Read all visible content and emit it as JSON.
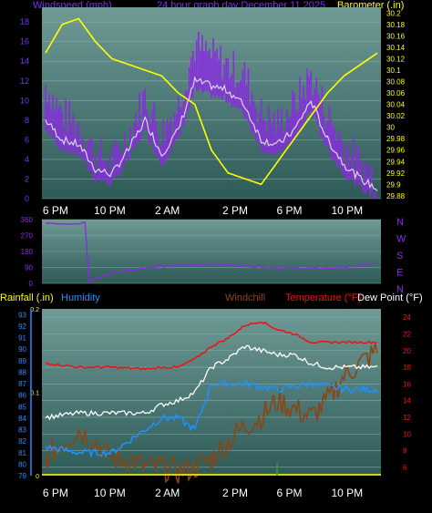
{
  "header": {
    "windspeed_label": "Windspeed (mph)",
    "period_label": "24 hour graph day  December 11 2025",
    "barometer_label": "Barometer (.in)",
    "rainfall_label": "Rainfall (.in)",
    "humidity_label": "Humidity",
    "windchill_label": "Windchill",
    "temperature_label": "Temperature (°F)",
    "dewpoint_label": "Dew Point (°F)"
  },
  "colors": {
    "windspeed": "#7b2ff7",
    "windgust": "#8a2be2",
    "windavg": "#d8d8e8",
    "barometer": "#ffff00",
    "direction": "#8a2be2",
    "rainfall": "#ffff00",
    "humidity": "#1e90ff",
    "windchill": "#8b4513",
    "temperature": "#ee1111",
    "dewpoint": "#ffffff",
    "plot_top": "#6f9a96",
    "plot_bottom": "#2e5a58"
  },
  "chart_data": [
    {
      "type": "line",
      "panel": "wind_barometer",
      "x_ticks": [
        "6 PM",
        "10 PM",
        "2 AM",
        "2 PM",
        "6 PM",
        "10 PM"
      ],
      "y_left_ticks": [
        "0",
        "2",
        "4",
        "6",
        "8",
        "10",
        "12",
        "14",
        "16",
        "18"
      ],
      "y_left_range": [
        0,
        19.5
      ],
      "y_right_ticks": [
        "29.88",
        "29.9",
        "29.92",
        "29.94",
        "29.96",
        "29.98",
        "30",
        "30.02",
        "30.04",
        "30.06",
        "30.08",
        "30.1",
        "30.12",
        "30.14",
        "30.16",
        "30.18",
        "30.2"
      ],
      "y_right_range": [
        29.875,
        30.21
      ],
      "series": [
        {
          "name": "Windspeed (mph)",
          "axis": "left",
          "x": [
            0,
            0.05,
            0.1,
            0.15,
            0.2,
            0.25,
            0.3,
            0.35,
            0.4,
            0.45,
            0.5,
            0.55,
            0.6,
            0.65,
            0.7,
            0.75,
            0.8,
            0.85,
            0.9,
            0.95,
            1
          ],
          "values": [
            11,
            8,
            7,
            4,
            3,
            6,
            10,
            6,
            9,
            15,
            14,
            13,
            12,
            8,
            7,
            9,
            12,
            8,
            5,
            3,
            1.5
          ]
        },
        {
          "name": "Windspeed avg",
          "axis": "left",
          "x": [
            0,
            0.05,
            0.1,
            0.15,
            0.2,
            0.25,
            0.3,
            0.35,
            0.4,
            0.45,
            0.5,
            0.55,
            0.6,
            0.65,
            0.7,
            0.75,
            0.8,
            0.85,
            0.9,
            0.95,
            1
          ],
          "values": [
            8,
            6,
            5.5,
            3,
            2.5,
            5,
            8,
            4.5,
            7,
            12,
            11.5,
            11,
            9.5,
            6,
            5.5,
            7,
            10,
            6,
            3.5,
            2,
            1
          ]
        },
        {
          "name": "Barometer (.in)",
          "axis": "right",
          "x": [
            0,
            0.05,
            0.1,
            0.15,
            0.2,
            0.25,
            0.3,
            0.35,
            0.4,
            0.45,
            0.5,
            0.55,
            0.6,
            0.65,
            0.7,
            0.75,
            0.8,
            0.85,
            0.9,
            0.95,
            1
          ],
          "values": [
            30.13,
            30.18,
            30.19,
            30.15,
            30.12,
            30.11,
            30.1,
            30.09,
            30.06,
            30.04,
            29.96,
            29.92,
            29.91,
            29.9,
            29.94,
            29.98,
            30.02,
            30.06,
            30.09,
            30.11,
            30.13
          ]
        }
      ]
    },
    {
      "type": "line",
      "panel": "wind_direction",
      "y_left_ticks": [
        "0",
        "90",
        "180",
        "270",
        "360"
      ],
      "y_range": [
        0,
        360
      ],
      "y_right_labels": [
        "N",
        "W",
        "S",
        "E",
        "N"
      ],
      "series": [
        {
          "name": "Wind direction",
          "x": [
            0,
            0.1,
            0.12,
            0.13,
            0.2,
            0.3,
            0.4,
            0.5,
            0.6,
            0.7,
            0.8,
            0.9,
            1
          ],
          "values": [
            340,
            335,
            345,
            10,
            60,
            90,
            100,
            105,
            100,
            90,
            85,
            90,
            110
          ]
        }
      ]
    },
    {
      "type": "line",
      "panel": "temperature_humidity_rain",
      "x_ticks": [
        "6 PM",
        "10 PM",
        "2 AM",
        "2 PM",
        "6 PM",
        "10 PM"
      ],
      "y_humidity_ticks": [
        "79",
        "80",
        "81",
        "82",
        "83",
        "84",
        "85",
        "86",
        "87",
        "88",
        "89",
        "90",
        "91",
        "92",
        "93"
      ],
      "y_humidity_range": [
        79,
        93.5
      ],
      "y_rain_ticks": [
        "0",
        "0.1",
        "0.2"
      ],
      "y_temp_ticks": [
        "6",
        "8",
        "10",
        "12",
        "14",
        "16",
        "18",
        "20",
        "22",
        "24"
      ],
      "y_temp_range": [
        5,
        25
      ],
      "series": [
        {
          "name": "Temperature (°F)",
          "axis": "temp",
          "x": [
            0,
            0.1,
            0.2,
            0.3,
            0.35,
            0.4,
            0.45,
            0.5,
            0.55,
            0.6,
            0.65,
            0.7,
            0.75,
            0.8,
            0.85,
            0.9,
            1
          ],
          "values": [
            18.5,
            18,
            18,
            17.8,
            18,
            18,
            19,
            20.5,
            21.5,
            23,
            23.5,
            22.5,
            22,
            21,
            21,
            21,
            21
          ]
        },
        {
          "name": "Dew Point (°F)",
          "axis": "temp",
          "x": [
            0,
            0.1,
            0.2,
            0.3,
            0.35,
            0.4,
            0.45,
            0.5,
            0.55,
            0.6,
            0.65,
            0.7,
            0.75,
            0.8,
            0.85,
            0.9,
            1
          ],
          "values": [
            12,
            12.5,
            12.5,
            12.5,
            13.5,
            14,
            15,
            18,
            19,
            20.5,
            20,
            19.5,
            19.5,
            18.5,
            18,
            18,
            18
          ]
        },
        {
          "name": "Windchill",
          "axis": "temp",
          "x": [
            0,
            0.05,
            0.1,
            0.15,
            0.2,
            0.25,
            0.3,
            0.35,
            0.4,
            0.45,
            0.5,
            0.55,
            0.6,
            0.65,
            0.7,
            0.75,
            0.8,
            0.85,
            0.9,
            1
          ],
          "values": [
            7,
            9,
            10.5,
            9,
            7,
            7,
            6,
            6,
            5.5,
            6,
            7,
            9,
            11,
            12,
            14,
            13,
            12,
            14,
            17,
            20
          ]
        },
        {
          "name": "Humidity",
          "axis": "humidity",
          "x": [
            0,
            0.1,
            0.2,
            0.3,
            0.35,
            0.4,
            0.45,
            0.5,
            0.6,
            0.7,
            0.8,
            0.9,
            1
          ],
          "values": [
            81.5,
            81,
            81,
            83,
            84,
            84,
            83,
            87,
            87,
            86.5,
            87,
            86.5,
            86.5
          ]
        },
        {
          "name": "Rainfall (.in)",
          "axis": "rain",
          "x": [
            0,
            1
          ],
          "values": [
            0,
            0
          ]
        }
      ]
    }
  ]
}
